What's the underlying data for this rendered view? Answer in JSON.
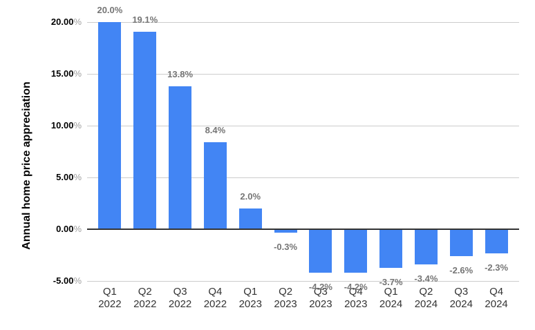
{
  "chart_data": {
    "type": "bar",
    "title": "",
    "xlabel": "",
    "ylabel": "Annual home price appreciation",
    "categories": [
      "Q1 2022",
      "Q2 2022",
      "Q3 2022",
      "Q4 2022",
      "Q1 2023",
      "Q2 2023",
      "Q3 2023",
      "Q4 2023",
      "Q1 2024",
      "Q2 2024",
      "Q3 2024",
      "Q4 2024"
    ],
    "values": [
      20.0,
      19.1,
      13.8,
      8.4,
      2.0,
      -0.3,
      -4.2,
      -4.2,
      -3.7,
      -3.4,
      -2.6,
      -2.3
    ],
    "value_labels": [
      "20.0%",
      "19.1%",
      "13.8%",
      "8.4%",
      "2.0%",
      "-0.3%",
      "-4.2%",
      "-4.2%",
      "-3.7%",
      "-3.4%",
      "-2.6%",
      "-2.3%"
    ],
    "ylim": [
      -5,
      20
    ],
    "y_ticks": [
      {
        "value": 20,
        "label": "20.00%"
      },
      {
        "value": 15,
        "label": "15.00%"
      },
      {
        "value": 10,
        "label": "10.00%"
      },
      {
        "value": 5,
        "label": "5.00%"
      },
      {
        "value": 0,
        "label": "0.00%"
      },
      {
        "value": -5,
        "label": "-5.00%"
      }
    ],
    "grid": true,
    "legend": "none",
    "bar_color": "#4285f4"
  },
  "style": {
    "background": "#ffffff",
    "gridline_color": "#cccccc",
    "zero_line_color": "#333333",
    "y_tick_number_color": "#000000",
    "y_tick_percent_color": "#9e9e9e",
    "x_label_color": "#333333",
    "value_label_color": "#757575"
  }
}
